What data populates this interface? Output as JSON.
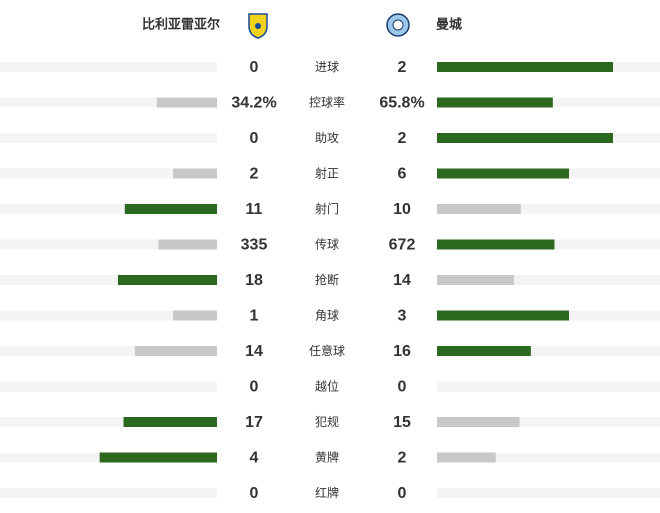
{
  "header": {
    "home": "比利亚雷亚尔",
    "away": "曼城"
  },
  "rows": [
    {
      "label": "进球",
      "home": 0,
      "away": 2
    },
    {
      "label": "控球率",
      "home": 34.2,
      "away": 65.8,
      "home_label": "34.2%",
      "away_label": "65.8%"
    },
    {
      "label": "助攻",
      "home": 0,
      "away": 2
    },
    {
      "label": "射正",
      "home": 2,
      "away": 6
    },
    {
      "label": "射门",
      "home": 11,
      "away": 10
    },
    {
      "label": "传球",
      "home": 335,
      "away": 672
    },
    {
      "label": "抢断",
      "home": 18,
      "away": 14
    },
    {
      "label": "角球",
      "home": 1,
      "away": 3
    },
    {
      "label": "任意球",
      "home": 14,
      "away": 16
    },
    {
      "label": "越位",
      "home": 0,
      "away": 0
    },
    {
      "label": "犯规",
      "home": 17,
      "away": 15
    },
    {
      "label": "黄牌",
      "home": 4,
      "away": 2
    },
    {
      "label": "红牌",
      "home": 0,
      "away": 0
    }
  ]
}
